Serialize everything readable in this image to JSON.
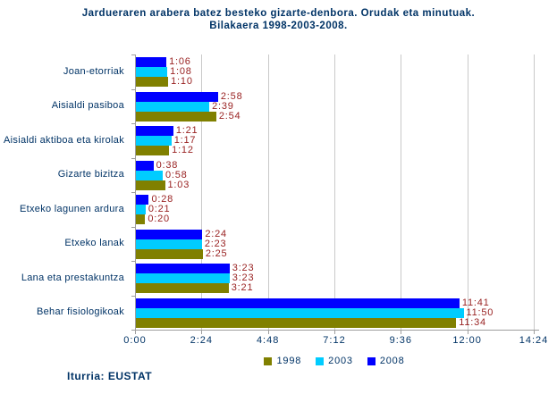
{
  "header": {
    "title_line1": "Jardueraren arabera batez besteko gizarte-denbora. Orudak eta minutuak.",
    "title_line2": "Bilakaera 1998-2003-2008."
  },
  "chart_data": {
    "type": "bar",
    "orientation": "horizontal",
    "title": "Jardueraren arabera batez besteko gizarte-denbora. Orudak eta minutuak. Bilakaera 1998-2003-2008.",
    "categories": [
      "Joan-etorriak",
      "Aisialdi pasiboa",
      "Aisialdi aktiboa eta kirolak",
      "Gizarte bizitza",
      "Etxeko lagunen ardura",
      "Etxeko lanak",
      "Lana eta prestakuntza",
      "Behar fisiologikoak"
    ],
    "series": [
      {
        "name": "1998",
        "color": "#808000",
        "values": [
          "1:10",
          "2:54",
          "1:12",
          "1:03",
          "0:20",
          "2:25",
          "3:21",
          "11:34"
        ]
      },
      {
        "name": "2003",
        "color": "#00CCFF",
        "values": [
          "1:08",
          "2:39",
          "1:17",
          "0:58",
          "0:21",
          "2:23",
          "3:23",
          "11:50"
        ]
      },
      {
        "name": "2008",
        "color": "#0000FF",
        "values": [
          "1:06",
          "2:58",
          "1:21",
          "0:38",
          "0:28",
          "2:24",
          "3:23",
          "11:41"
        ]
      }
    ],
    "series_draw_order_top_to_bottom": [
      "2008",
      "2003",
      "1998"
    ],
    "x_ticks": [
      "0:00",
      "2:24",
      "4:48",
      "7:12",
      "9:36",
      "12:00",
      "14:24"
    ],
    "x_range_minutes": [
      0,
      864
    ],
    "values_unit": "hours:minutes",
    "value_label_color": "#992222",
    "grid": true,
    "legend_position": "bottom"
  },
  "footer": {
    "source": "Iturria: EUSTAT"
  },
  "colors": {
    "text": "#003366",
    "gridline": "#C9C9C9",
    "axis": "#9E9E9E",
    "background": "#FFFFFF"
  }
}
